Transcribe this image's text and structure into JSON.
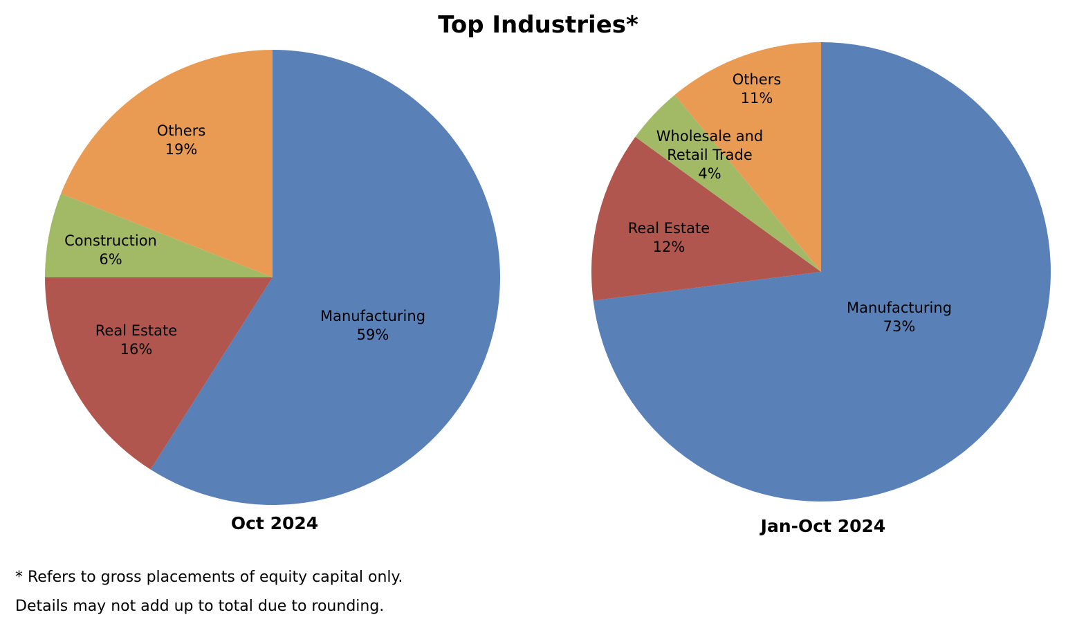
{
  "title": "Top Industries*",
  "colors": {
    "manufacturing": "#5a80b8",
    "real_estate": "#b1564f",
    "green_slice": "#a2ba66",
    "others": "#e99b54"
  },
  "chart_data": [
    {
      "type": "pie",
      "label": "Oct 2024",
      "slices": [
        {
          "name": "Manufacturing",
          "value": 59,
          "display": "59%",
          "color": "#5a80b8"
        },
        {
          "name": "Real Estate",
          "value": 16,
          "display": "16%",
          "color": "#b1564f"
        },
        {
          "name": "Construction",
          "value": 6,
          "display": "6%",
          "color": "#a2ba66"
        },
        {
          "name": "Others",
          "value": 19,
          "display": "19%",
          "color": "#e99b54"
        }
      ]
    },
    {
      "type": "pie",
      "label": "Jan-Oct 2024",
      "slices": [
        {
          "name": "Manufacturing",
          "value": 73,
          "display": "73%",
          "color": "#5a80b8"
        },
        {
          "name": "Real Estate",
          "value": 12,
          "display": "12%",
          "color": "#b1564f"
        },
        {
          "name": "Wholesale and Retail Trade",
          "value": 4,
          "display": "4%",
          "color": "#a2ba66"
        },
        {
          "name": "Others",
          "value": 11,
          "display": "11%",
          "color": "#e99b54"
        }
      ]
    }
  ],
  "footnotes": [
    "* Refers to gross placements of equity capital only.",
    "Details may not add up to total due to rounding."
  ]
}
